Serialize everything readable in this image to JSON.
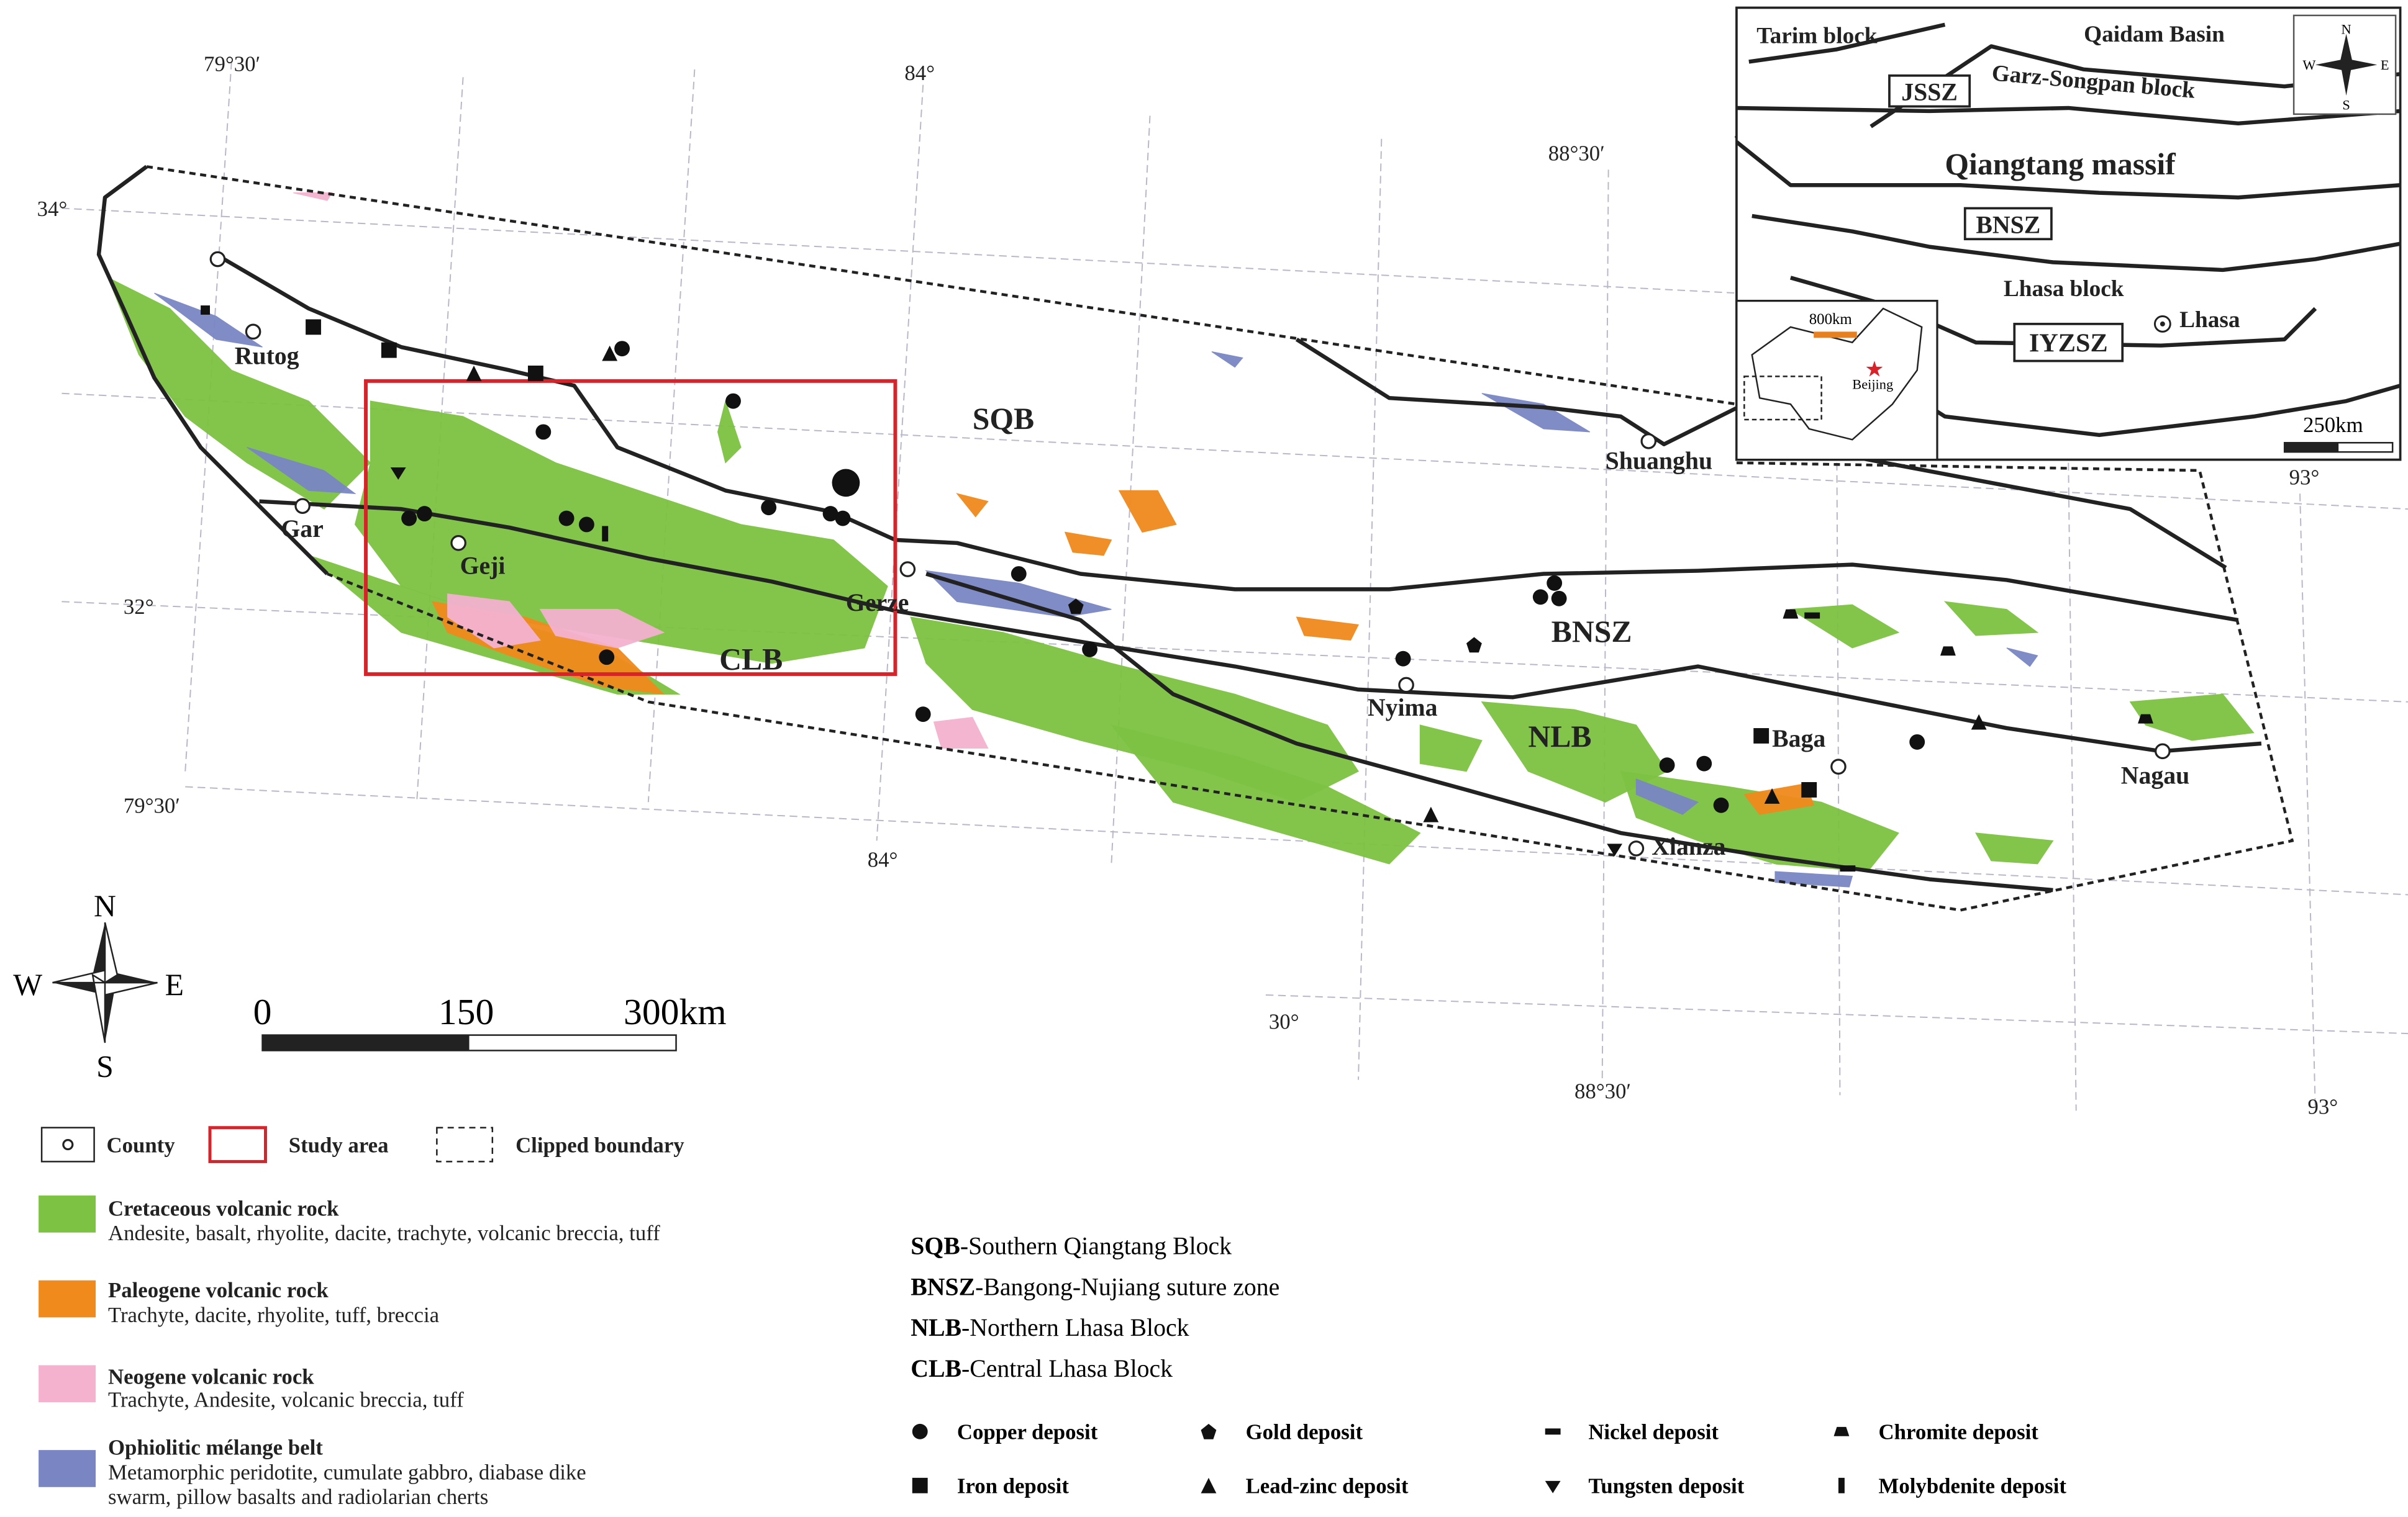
{
  "map": {
    "coordinate_labels": [
      "79°30′",
      "84°",
      "88°30′",
      "34°",
      "32°",
      "79°30′",
      "84°",
      "30°",
      "88°30′",
      "93°",
      "93°"
    ],
    "region_labels": [
      "SQB",
      "BNSZ",
      "NLB",
      "CLB"
    ],
    "places": [
      "Rutog",
      "Gar",
      "Geji",
      "Gerze",
      "Nyima",
      "Shuanghu",
      "Xianza",
      "Baga",
      "Nagau"
    ]
  },
  "inset": {
    "labels": [
      "Tarim block",
      "Qaidam Basin",
      "Garz-Songpan block",
      "Qiangtang massif",
      "Lhasa block",
      "Lhasa"
    ],
    "boxed_labels": [
      "JSSZ",
      "BNSZ",
      "IYZSZ"
    ],
    "scale": "250km",
    "china_scale": "800km",
    "capital": "Beijing",
    "compass": [
      "N",
      "S",
      "W",
      "E"
    ]
  },
  "compass": [
    "N",
    "S",
    "W",
    "E"
  ],
  "scale_bar": [
    "0",
    "150",
    "300km"
  ],
  "legend_symbols": [
    "County",
    "Study area",
    "Clipped boundary"
  ],
  "legend_units": [
    {
      "title": "Cretaceous volcanic rock",
      "lines": [
        "Andesite, basalt, rhyolite, dacite, trachyte, volcanic breccia, tuff"
      ]
    },
    {
      "title": "Paleogene volcanic rock",
      "lines": [
        "Trachyte, dacite, rhyolite, tuff, breccia"
      ]
    },
    {
      "title": "Neogene volcanic rock",
      "lines": [
        "Trachyte, Andesite, volcanic breccia, tuff"
      ]
    },
    {
      "title": "Ophiolitic mélange belt",
      "lines": [
        "Metamorphic peridotite, cumulate gabbro, diabase dike",
        "swarm, pillow basalts and radiolarian cherts"
      ]
    }
  ],
  "abbreviations": [
    {
      "abbr": "SQB",
      "text": "-Southern Qiangtang Block"
    },
    {
      "abbr": "BNSZ",
      "text": "-Bangong-Nujiang suture zone"
    },
    {
      "abbr": "NLB",
      "text": "-Northern Lhasa Block"
    },
    {
      "abbr": "CLB",
      "text": "-Central Lhasa Block"
    }
  ],
  "deposits": [
    "Copper deposit",
    "Gold deposit",
    "Nickel deposit",
    "Chromite deposit",
    "Iron deposit",
    "Lead-zinc deposit",
    "Tungsten deposit",
    "Molybdenite deposit"
  ]
}
